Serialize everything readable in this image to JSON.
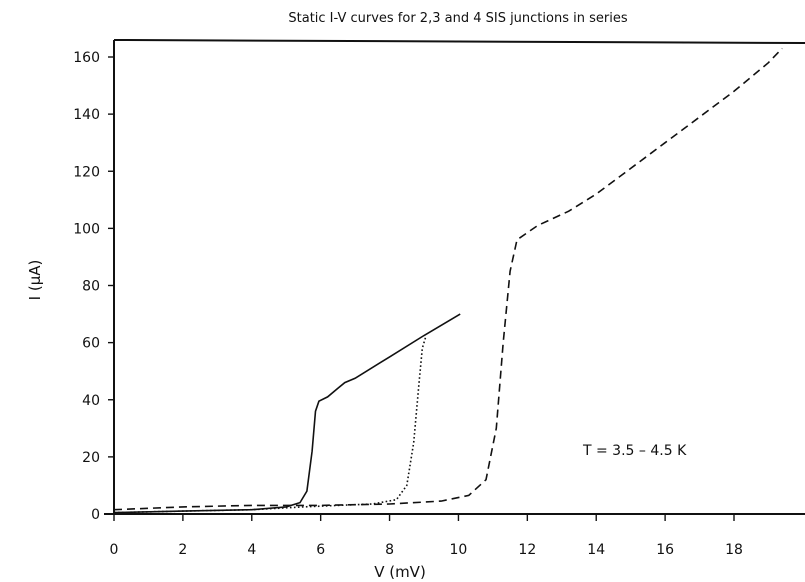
{
  "chart_data": {
    "type": "line",
    "title": "Static I-V curves for 2,3 and 4 SIS junctions in series",
    "xlabel": "V  (mV)",
    "ylabel": "I (μA)",
    "xlim": [
      0,
      19.5
    ],
    "ylim": [
      0,
      165
    ],
    "xticks": [
      0,
      2,
      4,
      6,
      8,
      10,
      12,
      14,
      16,
      18
    ],
    "yticks": [
      0,
      20,
      40,
      60,
      80,
      100,
      120,
      140,
      160
    ],
    "grid": false,
    "annotation": "T = 3.5 – 4.5 K",
    "series": [
      {
        "style": "solid",
        "points": [
          [
            0,
            0.5
          ],
          [
            2,
            1
          ],
          [
            4,
            1.5
          ],
          [
            5,
            2.5
          ],
          [
            5.4,
            4
          ],
          [
            5.6,
            8
          ],
          [
            5.75,
            22
          ],
          [
            5.85,
            36
          ],
          [
            5.95,
            39.5
          ],
          [
            6.2,
            41
          ],
          [
            6.5,
            44
          ],
          [
            6.7,
            46
          ],
          [
            7,
            47.5
          ],
          [
            8,
            55
          ],
          [
            9,
            62.5
          ],
          [
            10.05,
            70
          ]
        ]
      },
      {
        "style": "dotted",
        "points": [
          [
            0,
            0.5
          ],
          [
            2,
            1
          ],
          [
            4,
            1.5
          ],
          [
            5.5,
            2.5
          ],
          [
            6.5,
            3
          ],
          [
            7.5,
            3.5
          ],
          [
            8.2,
            5
          ],
          [
            8.5,
            10
          ],
          [
            8.7,
            25
          ],
          [
            8.85,
            45
          ],
          [
            8.95,
            58
          ],
          [
            9.05,
            62
          ]
        ]
      },
      {
        "style": "dashed",
        "points": [
          [
            0,
            1.5
          ],
          [
            2,
            2.5
          ],
          [
            4,
            3
          ],
          [
            6,
            3
          ],
          [
            8,
            3.5
          ],
          [
            9.5,
            4.5
          ],
          [
            10.3,
            6.5
          ],
          [
            10.8,
            12
          ],
          [
            11.1,
            30
          ],
          [
            11.3,
            60
          ],
          [
            11.5,
            85
          ],
          [
            11.7,
            96
          ],
          [
            12.3,
            101
          ],
          [
            13.2,
            106
          ],
          [
            14,
            112
          ],
          [
            15,
            121
          ],
          [
            16,
            130
          ],
          [
            17,
            139
          ],
          [
            18,
            148
          ],
          [
            19,
            158
          ],
          [
            19.4,
            163
          ]
        ]
      }
    ]
  }
}
